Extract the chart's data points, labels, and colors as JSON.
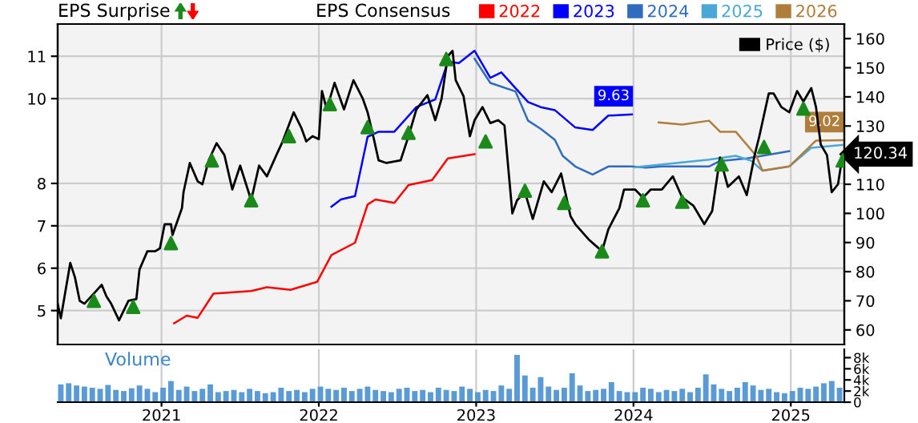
{
  "chart_data": [
    {
      "type": "line",
      "annotations": [
        "EPS Surprise",
        "EPS Consensus"
      ],
      "xlim": [
        2020.34,
        2025.34
      ],
      "xticks": [
        2021,
        2022,
        2023,
        2024,
        2025
      ],
      "ylim": [
        4.2,
        11.76
      ],
      "yticks": [
        5,
        6,
        7,
        8,
        10,
        11
      ],
      "y2lim": [
        55,
        165
      ],
      "y2ticks": [
        60,
        70,
        80,
        90,
        100,
        110,
        130,
        140,
        150,
        160
      ],
      "tick_labels": "y",
      "grid": true,
      "legend": "top",
      "series": [
        {
          "name": "2022",
          "color": "#ff0000",
          "x": [
            2021.08,
            2021.16,
            2021.23,
            2021.33,
            2021.57,
            2021.67,
            2021.82,
            2021.99,
            2022.08,
            2022.23,
            2022.31,
            2022.36,
            2022.48,
            2022.57,
            2022.72,
            2022.82,
            2022.99
          ],
          "values": [
            4.7,
            4.88,
            4.83,
            5.4,
            5.46,
            5.55,
            5.49,
            5.68,
            6.31,
            6.6,
            7.5,
            7.62,
            7.54,
            7.96,
            8.08,
            8.59,
            8.69
          ]
        },
        {
          "name": "2023",
          "color": "#0000ff",
          "x": [
            2022.08,
            2022.14,
            2022.23,
            2022.31,
            2022.38,
            2022.48,
            2022.62,
            2022.74,
            2022.82,
            2022.89,
            2022.99,
            2023.09,
            2023.16,
            2023.33,
            2023.41,
            2023.5,
            2023.63,
            2023.74,
            2023.84,
            2023.99
          ],
          "values": [
            7.45,
            7.62,
            7.7,
            9.1,
            9.22,
            9.22,
            9.8,
            9.98,
            10.87,
            10.84,
            11.13,
            10.49,
            10.62,
            9.92,
            9.8,
            9.73,
            9.32,
            9.26,
            9.6,
            9.63
          ],
          "value_labels": [
            null,
            null,
            null,
            null,
            null,
            null,
            null,
            null,
            null,
            null,
            null,
            null,
            null,
            null,
            null,
            null,
            null,
            null,
            null,
            "9.63"
          ]
        },
        {
          "name": "2024",
          "color": "#2f6bbf",
          "x": [
            2022.99,
            2023.09,
            2023.25,
            2023.33,
            2023.41,
            2023.5,
            2023.55,
            2023.63,
            2023.74,
            2023.84,
            2023.99,
            2024.08,
            2024.18,
            2024.48,
            2024.55,
            2024.72,
            2024.99
          ],
          "values": [
            10.94,
            10.37,
            10.17,
            9.48,
            9.29,
            9.03,
            8.65,
            8.4,
            8.21,
            8.4,
            8.4,
            8.37,
            8.4,
            8.4,
            8.53,
            8.59,
            8.76
          ]
        },
        {
          "name": "2025",
          "color": "#4aa8d8",
          "x": [
            2024.01,
            2024.48,
            2024.65,
            2024.75,
            2024.82,
            2024.99,
            2025.13,
            2025.33
          ],
          "values": [
            8.38,
            8.56,
            8.65,
            8.53,
            8.3,
            8.4,
            8.84,
            8.91
          ]
        },
        {
          "name": "2026",
          "color": "#b07d3a",
          "x": [
            2024.16,
            2024.31,
            2024.48,
            2024.55,
            2024.65,
            2024.78,
            2024.82,
            2024.99,
            2025.16,
            2025.33
          ],
          "values": [
            9.44,
            9.39,
            9.48,
            9.22,
            9.22,
            8.65,
            8.3,
            8.4,
            9.01,
            9.02
          ],
          "value_labels": [
            null,
            null,
            null,
            null,
            null,
            null,
            null,
            null,
            null,
            "9.02"
          ]
        },
        {
          "name": "Price ($)",
          "color": "#000000",
          "axis": "y2",
          "x": [
            2020.34,
            2020.36,
            2020.42,
            2020.45,
            2020.48,
            2020.51,
            2020.57,
            2020.62,
            2020.65,
            2020.68,
            2020.73,
            2020.79,
            2020.84,
            2020.86,
            2020.91,
            2020.96,
            2020.99,
            2021.02,
            2021.06,
            2021.07,
            2021.13,
            2021.14,
            2021.18,
            2021.23,
            2021.26,
            2021.3,
            2021.35,
            2021.4,
            2021.45,
            2021.5,
            2021.57,
            2021.62,
            2021.67,
            2021.73,
            2021.77,
            2021.84,
            2021.89,
            2021.92,
            2021.96,
            2022.0,
            2022.02,
            2022.05,
            2022.1,
            2022.16,
            2022.22,
            2022.28,
            2022.31,
            2022.35,
            2022.38,
            2022.43,
            2022.52,
            2022.57,
            2022.62,
            2022.69,
            2022.74,
            2022.78,
            2022.82,
            2022.85,
            2022.87,
            2022.92,
            2022.96,
            2022.99,
            2023.04,
            2023.09,
            2023.14,
            2023.18,
            2023.23,
            2023.26,
            2023.31,
            2023.36,
            2023.43,
            2023.48,
            2023.54,
            2023.6,
            2023.63,
            2023.72,
            2023.8,
            2023.84,
            2023.91,
            2023.94,
            2024.01,
            2024.06,
            2024.11,
            2024.18,
            2024.25,
            2024.31,
            2024.38,
            2024.45,
            2024.5,
            2024.55,
            2024.6,
            2024.67,
            2024.72,
            2024.77,
            2024.8,
            2024.86,
            2024.89,
            2024.94,
            2024.99,
            2025.04,
            2025.08,
            2025.13,
            2025.16,
            2025.19,
            2025.23,
            2025.26,
            2025.3,
            2025.33
          ],
          "values": [
            69,
            64,
            83,
            78,
            70,
            69,
            72.5,
            75.5,
            71.5,
            69,
            63.3,
            70,
            70.6,
            80.7,
            87,
            87,
            88,
            96.3,
            96.3,
            92.6,
            101.8,
            107.3,
            117.3,
            111,
            110,
            118.2,
            124.1,
            120,
            108.2,
            116.4,
            104.5,
            116.4,
            112.7,
            120,
            124.7,
            134.7,
            129.2,
            124.7,
            126.5,
            125.5,
            142,
            135.7,
            144.8,
            135.7,
            145.7,
            139.3,
            134.7,
            125.5,
            118.2,
            117.3,
            118.2,
            126.5,
            135.7,
            140.6,
            132,
            139.3,
            154,
            155.8,
            145.7,
            140.2,
            126.5,
            132,
            136.5,
            131,
            132,
            130.2,
            100,
            104.5,
            107.3,
            98.1,
            111,
            107.3,
            113.7,
            99,
            96.3,
            90.8,
            87,
            94.5,
            101.8,
            108.2,
            108.2,
            105.4,
            108.2,
            108.2,
            112.7,
            105.4,
            102.7,
            96.3,
            100.8,
            119.2,
            109.1,
            112.7,
            106.3,
            120,
            126.5,
            141.2,
            141.2,
            136.5,
            134.7,
            142,
            138.4,
            143,
            136.5,
            123.7,
            120,
            107.3,
            110,
            120.34
          ],
          "value_labels": [
            null,
            null,
            null,
            null,
            null,
            null,
            null,
            null,
            null,
            null,
            null,
            null,
            null,
            null,
            null,
            null,
            null,
            null,
            null,
            null,
            null,
            null,
            null,
            null,
            null,
            null,
            null,
            null,
            null,
            null,
            null,
            null,
            null,
            null,
            null,
            null,
            null,
            null,
            null,
            null,
            null,
            null,
            null,
            null,
            null,
            null,
            null,
            null,
            null,
            null,
            null,
            null,
            null,
            null,
            null,
            null,
            null,
            null,
            null,
            null,
            null,
            null,
            null,
            null,
            null,
            null,
            null,
            null,
            null,
            null,
            null,
            null,
            null,
            null,
            null,
            null,
            null,
            null,
            null,
            null,
            null,
            null,
            null,
            null,
            null,
            null,
            null,
            null,
            null,
            null,
            null,
            null,
            null,
            null,
            null,
            null,
            null,
            null,
            null,
            null,
            null,
            null,
            null,
            null,
            null,
            null,
            null,
            "120.34"
          ]
        },
        {
          "type": "scatter",
          "color": "#1a8a1a",
          "marker": "triangle",
          "axis": "y2",
          "x": [
            2020.57,
            2020.82,
            2021.06,
            2021.32,
            2021.57,
            2021.81,
            2022.07,
            2022.31,
            2022.57,
            2022.81,
            2023.06,
            2023.31,
            2023.56,
            2023.8,
            2024.06,
            2024.31,
            2024.56,
            2024.83,
            2025.08,
            2025.33
          ],
          "values": [
            70,
            67.9,
            89.8,
            118.2,
            104.5,
            126.5,
            137.5,
            129.6,
            127.7,
            153,
            124.7,
            107.8,
            103.6,
            87,
            104.5,
            104,
            116.8,
            122.8,
            136,
            118.2
          ]
        }
      ]
    },
    {
      "type": "bar",
      "annotations": [
        "Volume"
      ],
      "color": "#5b9bd5",
      "xlim": [
        2020.34,
        2025.34
      ],
      "xticks": [
        2021,
        2022,
        2023,
        2024,
        2025
      ],
      "ylim": [
        0,
        9500
      ],
      "yticks": [
        0,
        {
          "value": 2000,
          "label": "2k"
        },
        {
          "value": 4000,
          "label": "4k"
        },
        {
          "value": 6000,
          "label": "6k"
        },
        {
          "value": 8000,
          "label": "8k"
        }
      ],
      "grid": "x",
      "x": [
        2020.36,
        2020.41,
        2020.46,
        2020.51,
        2020.56,
        2020.61,
        2020.66,
        2020.71,
        2020.76,
        2020.81,
        2020.86,
        2020.91,
        2020.96,
        2021.01,
        2021.06,
        2021.11,
        2021.16,
        2021.21,
        2021.26,
        2021.31,
        2021.36,
        2021.41,
        2021.46,
        2021.51,
        2021.56,
        2021.61,
        2021.66,
        2021.71,
        2021.76,
        2021.81,
        2021.86,
        2021.91,
        2021.96,
        2022.01,
        2022.06,
        2022.11,
        2022.16,
        2022.21,
        2022.26,
        2022.31,
        2022.36,
        2022.41,
        2022.46,
        2022.51,
        2022.56,
        2022.61,
        2022.66,
        2022.71,
        2022.76,
        2022.81,
        2022.86,
        2022.91,
        2022.96,
        2023.01,
        2023.06,
        2023.11,
        2023.16,
        2023.21,
        2023.26,
        2023.31,
        2023.36,
        2023.41,
        2023.46,
        2023.51,
        2023.56,
        2023.61,
        2023.66,
        2023.71,
        2023.76,
        2023.81,
        2023.86,
        2023.91,
        2023.96,
        2024.01,
        2024.06,
        2024.11,
        2024.16,
        2024.21,
        2024.26,
        2024.31,
        2024.36,
        2024.41,
        2024.46,
        2024.51,
        2024.56,
        2024.61,
        2024.66,
        2024.71,
        2024.76,
        2024.81,
        2024.86,
        2024.91,
        2024.96,
        2025.01,
        2025.06,
        2025.11,
        2025.16,
        2025.21,
        2025.26,
        2025.31
      ],
      "values": [
        3200,
        3400,
        3000,
        2800,
        2600,
        2400,
        3100,
        2200,
        2000,
        2500,
        3000,
        2400,
        1800,
        2600,
        3800,
        2200,
        2800,
        2000,
        2400,
        3200,
        1800,
        2000,
        2200,
        1800,
        2400,
        2000,
        1600,
        1800,
        2600,
        2000,
        2200,
        1800,
        2400,
        2800,
        2400,
        2200,
        2600,
        2000,
        2400,
        2800,
        2200,
        2000,
        1800,
        2400,
        2600,
        2000,
        2200,
        1800,
        2600,
        2200,
        2000,
        2800,
        2400,
        1800,
        2200,
        2000,
        3000,
        2400,
        8500,
        4800,
        2600,
        4500,
        2800,
        2200,
        2600,
        5200,
        3000,
        2000,
        2200,
        2400,
        3600,
        2000,
        1800,
        1800,
        2600,
        2400,
        1800,
        2200,
        2000,
        2400,
        1800,
        2600,
        5000,
        3200,
        2400,
        2000,
        2600,
        3600,
        3000,
        2200,
        2400,
        1800,
        1600,
        2000,
        2600,
        2400,
        2800,
        3400,
        3800,
        2600
      ]
    }
  ]
}
